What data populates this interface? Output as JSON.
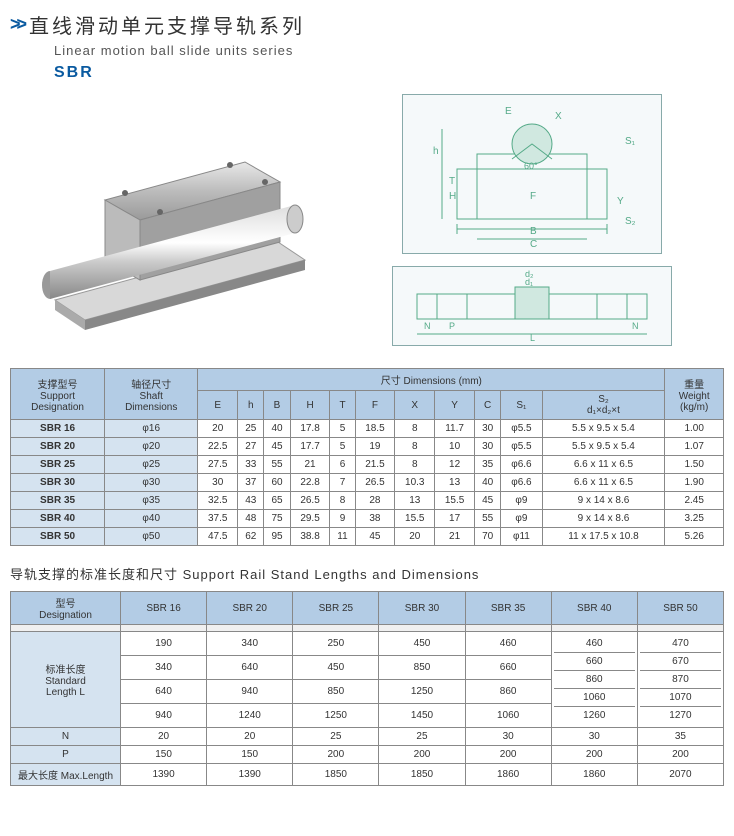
{
  "header": {
    "title_cn": "直线滑动单元支撑导轨系列",
    "title_en": "Linear motion ball slide units series",
    "series": "SBR"
  },
  "diagram_labels": {
    "d1": "E  X  S₁  h  T  H  60°  Y  F  C  S₂  B",
    "d2": "d₂  d₁  N  P  N  L"
  },
  "table1": {
    "headers": {
      "support": "支撑型号\nSupport\nDesignation",
      "shaft": "轴径尺寸\nShaft\nDimensions",
      "dims": "尺寸 Dimensions (mm)",
      "weight": "重量\nWeight\n(kg/m)",
      "cols": [
        "E",
        "h",
        "B",
        "H",
        "T",
        "F",
        "X",
        "Y",
        "C",
        "S₁",
        "S₂\nd₁×d₂×t"
      ]
    },
    "rows": [
      {
        "name": "SBR 16",
        "shaft": "16",
        "v": [
          "20",
          "25",
          "40",
          "17.8",
          "5",
          "18.5",
          "8",
          "11.7",
          "30",
          "φ5.5",
          "5.5 x 9.5 x 5.4",
          "1.00"
        ]
      },
      {
        "name": "SBR 20",
        "shaft": "20",
        "v": [
          "22.5",
          "27",
          "45",
          "17.7",
          "5",
          "19",
          "8",
          "10",
          "30",
          "φ5.5",
          "5.5 x 9.5 x 5.4",
          "1.07"
        ]
      },
      {
        "name": "SBR 25",
        "shaft": "25",
        "v": [
          "27.5",
          "33",
          "55",
          "21",
          "6",
          "21.5",
          "8",
          "12",
          "35",
          "φ6.6",
          "6.6 x 11 x 6.5",
          "1.50"
        ]
      },
      {
        "name": "SBR 30",
        "shaft": "30",
        "v": [
          "30",
          "37",
          "60",
          "22.8",
          "7",
          "26.5",
          "10.3",
          "13",
          "40",
          "φ6.6",
          "6.6 x 11 x 6.5",
          "1.90"
        ]
      },
      {
        "name": "SBR 35",
        "shaft": "35",
        "v": [
          "32.5",
          "43",
          "65",
          "26.5",
          "8",
          "28",
          "13",
          "15.5",
          "45",
          "φ9",
          "9 x 14 x 8.6",
          "2.45"
        ]
      },
      {
        "name": "SBR 40",
        "shaft": "40",
        "v": [
          "37.5",
          "48",
          "75",
          "29.5",
          "9",
          "38",
          "15.5",
          "17",
          "55",
          "φ9",
          "9 x 14 x 8.6",
          "3.25"
        ]
      },
      {
        "name": "SBR 50",
        "shaft": "50",
        "v": [
          "47.5",
          "62",
          "95",
          "38.8",
          "11",
          "45",
          "20",
          "21",
          "70",
          "φ11",
          "11 x 17.5 x 10.8",
          "5.26"
        ]
      }
    ]
  },
  "subtitle2": "导轨支撑的标准长度和尺寸   Support  Rail Stand Lengths and Dimensions",
  "table2": {
    "header_designation": "型号\nDesignation",
    "cols": [
      "SBR 16",
      "SBR 20",
      "SBR 25",
      "SBR 30",
      "SBR 35",
      "SBR 40",
      "SBR 50"
    ],
    "std_label": "标准长度\nStandard\nLength  L",
    "std_values": [
      [
        "190",
        "340",
        "250",
        "450",
        "460"
      ],
      [
        "340",
        "640",
        "450",
        "850",
        "660"
      ],
      [
        "640",
        "940",
        "850",
        "1250",
        "860"
      ],
      [
        "940",
        "1240",
        "1250",
        "1450",
        "1060"
      ]
    ],
    "sbr40_lengths": [
      "460",
      "660",
      "860",
      "1060",
      "1260"
    ],
    "sbr50_lengths": [
      "470",
      "670",
      "870",
      "1070",
      "1270"
    ],
    "rows_bottom": [
      {
        "label": "N",
        "v": [
          "20",
          "20",
          "25",
          "25",
          "30",
          "30",
          "35"
        ]
      },
      {
        "label": "P",
        "v": [
          "150",
          "150",
          "200",
          "200",
          "200",
          "200",
          "200"
        ]
      },
      {
        "label": "最大长度 Max.Length",
        "v": [
          "1390",
          "1390",
          "1850",
          "1850",
          "1860",
          "1860",
          "2070"
        ]
      }
    ]
  },
  "colors": {
    "header_bg": "#b3cce5",
    "row_header_bg": "#d5e3f0",
    "border": "#888888",
    "accent": "#0a5aa0"
  }
}
